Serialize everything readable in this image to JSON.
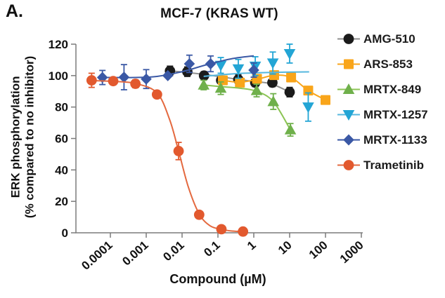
{
  "panel_label": "A.",
  "chart_data": {
    "type": "line",
    "title": "MCF-7 (KRAS WT)",
    "xlabel": "Compound (µM)",
    "ylabel_line1": "ERK phosphorylation",
    "ylabel_line2": "(% compared to no inhibitor)",
    "x_scale": "log",
    "xlim": [
      1e-05,
      1000
    ],
    "ylim": [
      0,
      120
    ],
    "x_ticks": [
      "0.0001",
      "0.001",
      "0.01",
      "0.1",
      "1",
      "10",
      "100",
      "1000"
    ],
    "y_ticks": [
      0,
      20,
      40,
      60,
      80,
      100,
      120
    ],
    "grid": false,
    "legend_position": "right",
    "series": [
      {
        "name": "AMG-510",
        "marker": "circle",
        "color": "#1b1b1b",
        "line_color": "#8f8f8f",
        "x": [
          0.0046,
          0.014,
          0.041,
          0.123,
          0.37,
          1.1,
          3.3,
          10
        ],
        "y": [
          103,
          102.5,
          100,
          97,
          97.5,
          95.5,
          95.5,
          89.5
        ],
        "err": [
          3,
          3,
          2.5,
          0,
          3,
          2.5,
          2.5,
          3
        ],
        "fit": [
          [
            0.0046,
            103
          ],
          [
            0.014,
            102
          ],
          [
            0.05,
            100.5
          ],
          [
            0.2,
            98.5
          ],
          [
            0.8,
            96.5
          ],
          [
            3,
            94.8
          ],
          [
            10,
            89.5
          ]
        ]
      },
      {
        "name": "ARS-853",
        "marker": "square",
        "color": "#F9A51A",
        "line_color": "#F9A51A",
        "x": [
          0.137,
          0.41,
          1.23,
          3.7,
          11,
          33,
          100
        ],
        "y": [
          97,
          95.5,
          98,
          100.3,
          98.8,
          90.5,
          84.5
        ],
        "err": [
          2,
          2,
          2,
          2,
          2,
          2,
          2
        ],
        "fit": [
          [
            0.137,
            97
          ],
          [
            0.41,
            95.8
          ],
          [
            1.23,
            97.6
          ],
          [
            3.7,
            100.2
          ],
          [
            11,
            98.8
          ],
          [
            33,
            90.5
          ],
          [
            100,
            84.5
          ]
        ]
      },
      {
        "name": "MRTX-849",
        "marker": "triangle-up",
        "color": "#6FB04B",
        "line_color": "#8CC455",
        "x": [
          0.04,
          0.12,
          1.2,
          3.5,
          10.5
        ],
        "y": [
          94,
          92,
          90.5,
          83.5,
          65.5
        ],
        "err": [
          3,
          4,
          4,
          5,
          4
        ],
        "fit": [
          [
            0.04,
            94
          ],
          [
            0.12,
            93
          ],
          [
            0.4,
            92
          ],
          [
            1.2,
            90
          ],
          [
            3.5,
            83.5
          ],
          [
            10.5,
            65.5
          ]
        ]
      },
      {
        "name": "MRTX-1257",
        "marker": "triangle-down",
        "color": "#23A5D5",
        "line_color": "#55B7DE",
        "x": [
          0.12,
          0.37,
          1.1,
          3.4,
          10,
          33
        ],
        "y": [
          106.5,
          104.3,
          106,
          108,
          114,
          80
        ],
        "err": [
          5,
          6,
          6,
          7,
          6,
          9
        ],
        "fit": [
          [
            0.04,
            99.5
          ],
          [
            0.3,
            101.2
          ],
          [
            3,
            102
          ],
          [
            35,
            102.4
          ]
        ]
      },
      {
        "name": "MRTX-1133",
        "marker": "diamond",
        "color": "#3A58A5",
        "line_color": "#3A58A5",
        "x": [
          6e-05,
          0.00024,
          0.001,
          0.004,
          0.016,
          0.0625,
          1
        ],
        "y": [
          98.8,
          99,
          97.8,
          100,
          107.5,
          107.5,
          103.5
        ],
        "err": [
          4.5,
          8,
          6,
          0,
          5.5,
          5,
          4.5
        ],
        "fit": [
          [
            6e-05,
            98.8
          ],
          [
            0.0005,
            98.8
          ],
          [
            0.002,
            99.5
          ],
          [
            0.01,
            102.5
          ],
          [
            0.05,
            107
          ],
          [
            0.25,
            110.8
          ],
          [
            1,
            112.6
          ]
        ]
      },
      {
        "name": "Trametinib",
        "marker": "circle",
        "color": "#E2592E",
        "line_color": "#E4693F",
        "x": [
          3e-05,
          0.00012,
          0.0005,
          0.002,
          0.008,
          0.03,
          0.125,
          0.5
        ],
        "y": [
          97,
          96.5,
          94.8,
          88,
          52,
          11.5,
          2.3,
          0.8
        ],
        "err": [
          4.5,
          2,
          2.5,
          2,
          5.5,
          2,
          0,
          0
        ],
        "fit": [
          [
            3e-05,
            96.8
          ],
          [
            0.00012,
            96.3
          ],
          [
            0.0005,
            95
          ],
          [
            0.002,
            89
          ],
          [
            0.0045,
            72
          ],
          [
            0.008,
            52
          ],
          [
            0.015,
            29
          ],
          [
            0.03,
            12
          ],
          [
            0.06,
            4.5
          ],
          [
            0.125,
            2.2
          ],
          [
            0.25,
            1.1
          ],
          [
            0.5,
            0.8
          ]
        ]
      }
    ]
  }
}
